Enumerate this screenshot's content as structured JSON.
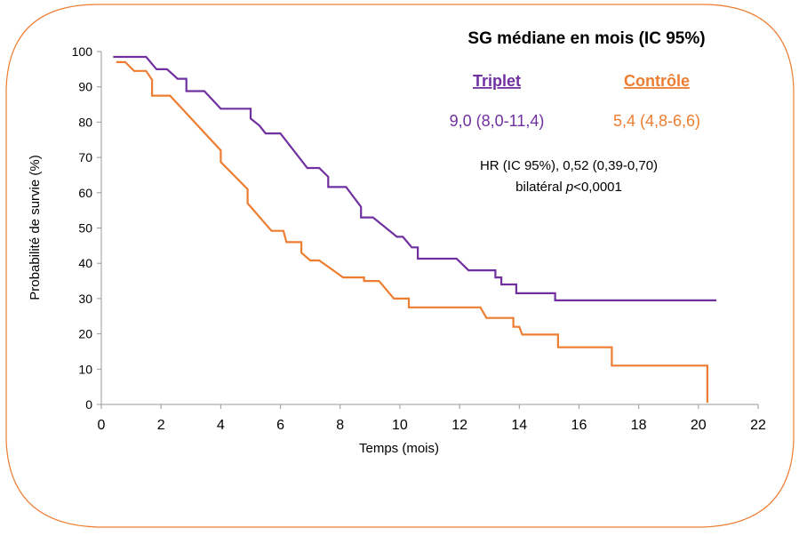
{
  "chart_data": {
    "type": "line",
    "title": "SG médiane en mois (IC 95%)",
    "x_label": "Temps (mois)",
    "y_label": "Probabilité de survie (%)",
    "xlim": [
      0,
      22
    ],
    "xticks": [
      0,
      2,
      4,
      6,
      8,
      10,
      12,
      14,
      16,
      18,
      20,
      22
    ],
    "ylim": [
      0,
      100
    ],
    "yticks": [
      0,
      10,
      20,
      30,
      40,
      50,
      60,
      70,
      80,
      90,
      100
    ],
    "grid": false,
    "series": [
      {
        "name": "Triplet",
        "color": "#7030a0",
        "median": "9,0 (8,0-11,4)",
        "x": [
          0.4,
          1.5,
          1.85,
          2.2,
          2.4,
          2.55,
          2.85,
          2.85,
          3.45,
          4.0,
          5.0,
          5.0,
          5.3,
          5.5,
          6.0,
          6.9,
          7.3,
          7.6,
          7.6,
          8.2,
          8.7,
          8.7,
          9.1,
          9.9,
          10.1,
          10.4,
          10.6,
          10.6,
          11.9,
          12.3,
          13.2,
          13.2,
          13.4,
          13.4,
          13.9,
          13.9,
          15.2,
          15.2,
          20.6
        ],
        "values": [
          98.5,
          98.5,
          95,
          95,
          93.5,
          92.3,
          92.3,
          88.8,
          88.8,
          83.8,
          83.8,
          81,
          79,
          76.8,
          76.8,
          67,
          67,
          64.5,
          61.6,
          61.6,
          56,
          53,
          53,
          47.5,
          47.5,
          44.5,
          44.5,
          41.3,
          41.3,
          38,
          38,
          36,
          36,
          34,
          34,
          31.5,
          31.5,
          29.5,
          29.5
        ]
      },
      {
        "name": "Contrôle",
        "color": "#ed7d31",
        "median": "5,4 (4,8-6,6)",
        "x": [
          0.5,
          0.8,
          1.1,
          1.5,
          1.7,
          1.7,
          2.3,
          4.0,
          4.0,
          4.9,
          4.9,
          5.7,
          6.1,
          6.2,
          6.7,
          6.7,
          7.0,
          7.3,
          8.1,
          8.8,
          8.8,
          9.3,
          9.8,
          10.3,
          10.3,
          12.7,
          12.9,
          13.8,
          13.8,
          14.0,
          14.1,
          15.3,
          15.3,
          17.1,
          17.1,
          20.3,
          20.3
        ],
        "values": [
          97,
          97,
          94.5,
          94.5,
          92,
          87.5,
          87.5,
          72,
          68.7,
          61,
          57,
          49.2,
          49.2,
          46,
          46,
          43,
          40.8,
          40.8,
          36,
          36,
          35,
          35,
          30,
          30,
          27.5,
          27.5,
          24.5,
          24.5,
          22,
          22,
          19.8,
          19.8,
          16.2,
          16.2,
          11,
          11,
          0.5
        ]
      }
    ],
    "annotation_hr": "HR (IC 95%), 0,52 (0,39-0,70)",
    "annotation_p": [
      "bilatéral ",
      "p",
      "<0,0001"
    ]
  }
}
